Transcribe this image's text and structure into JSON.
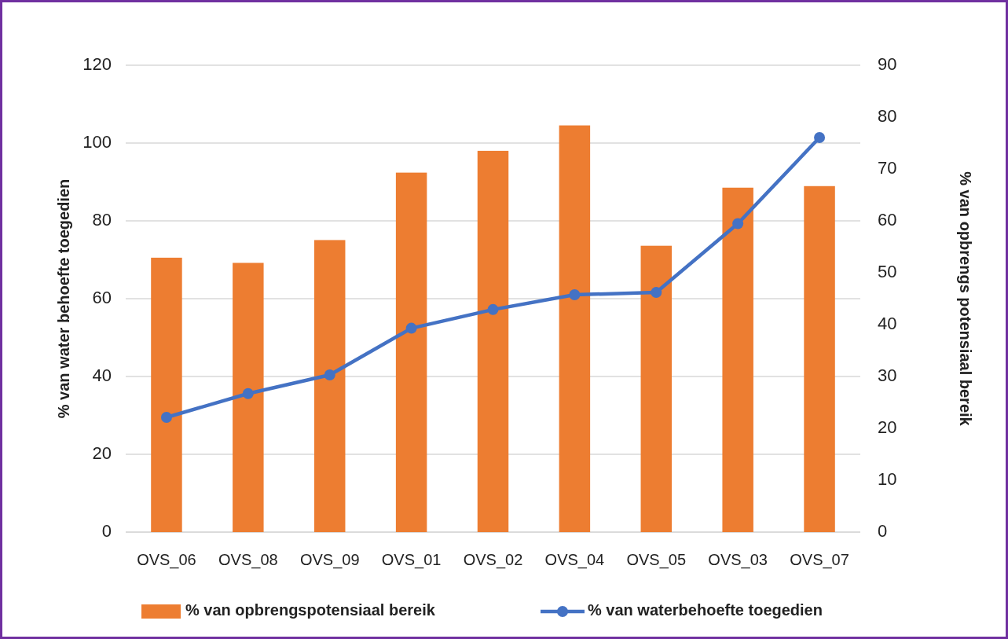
{
  "chart_data": {
    "type": "bar",
    "ylabel": "% van water behoefte toegedien",
    "y2label": "% van opbrengs potensiaal bereik",
    "categories": [
      "OVS_06",
      "OVS_08",
      "OVS_09",
      "OVS_01",
      "OVS_02",
      "OVS_04",
      "OVS_05",
      "OVS_03",
      "OVS_07"
    ],
    "series": [
      {
        "name": "% van opbrengspotensiaal bereik",
        "axis": "y2",
        "color": "#ed7d31",
        "values": [
          52.9,
          51.9,
          56.3,
          69.3,
          73.5,
          78.4,
          55.2,
          66.4,
          66.7
        ]
      },
      {
        "name": "% van waterbehoefte toegedien",
        "type": "line",
        "color": "#4472c4",
        "marker": "circle",
        "values": [
          29.5,
          35.6,
          40.4,
          52.4,
          57.2,
          61.0,
          61.6,
          79.3,
          101.4
        ]
      }
    ],
    "ylim": [
      0,
      120
    ],
    "yticks": [
      0,
      20,
      40,
      60,
      80,
      100,
      120
    ],
    "y2lim": [
      0,
      90
    ],
    "y2ticks": [
      0,
      10,
      20,
      30,
      40,
      50,
      60,
      70,
      80,
      90
    ],
    "grid": "y",
    "legend": "bottom"
  }
}
